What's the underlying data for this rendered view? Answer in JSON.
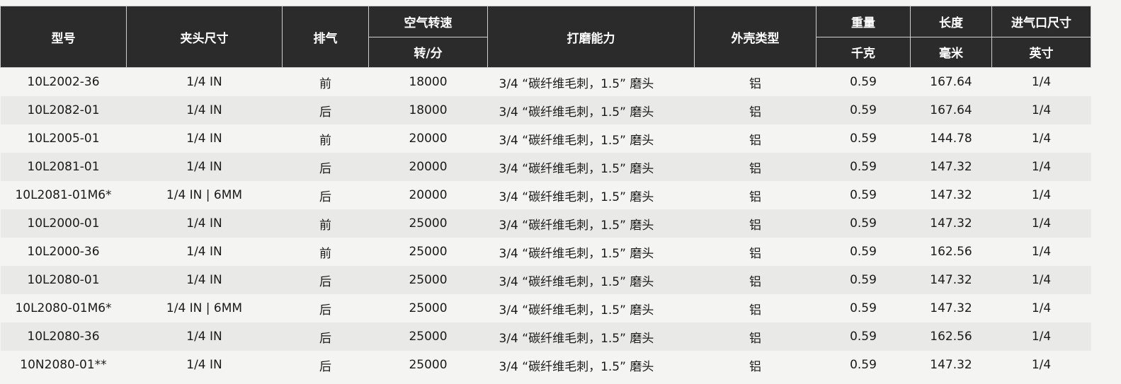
{
  "headers": {
    "model": "型号",
    "chuck_size": "夹头尺寸",
    "exhaust": "排气",
    "air_speed": "空气转速",
    "air_speed_unit": "转/分",
    "grinding": "打磨能力",
    "housing": "外壳类型",
    "weight": "重量",
    "weight_unit": "千克",
    "length": "长度",
    "length_unit": "毫米",
    "inlet": "进气口尺寸",
    "inlet_unit": "英寸"
  },
  "rows": [
    [
      "10L2002-36",
      "1/4 IN",
      "前",
      "18000",
      "3/4 “碳纤维毛刺，1.5” 磨头",
      "铝",
      "0.59",
      "167.64",
      "1/4"
    ],
    [
      "10L2082-01",
      "1/4 IN",
      "后",
      "18000",
      "3/4 “碳纤维毛刺，1.5” 磨头",
      "铝",
      "0.59",
      "167.64",
      "1/4"
    ],
    [
      "10L2005-01",
      "1/4 IN",
      "前",
      "20000",
      "3/4 “碳纤维毛刺，1.5” 磨头",
      "铝",
      "0.59",
      "144.78",
      "1/4"
    ],
    [
      "10L2081-01",
      "1/4 IN",
      "后",
      "20000",
      "3/4 “碳纤维毛刺，1.5” 磨头",
      "铝",
      "0.59",
      "147.32",
      "1/4"
    ],
    [
      "10L2081-01M6*",
      "1/4 IN | 6MM",
      "后",
      "20000",
      "3/4 “碳纤维毛刺，1.5” 磨头",
      "铝",
      "0.59",
      "147.32",
      "1/4"
    ],
    [
      "10L2000-01",
      "1/4 IN",
      "前",
      "25000",
      "3/4 “碳纤维毛刺，1.5” 磨头",
      "铝",
      "0.59",
      "147.32",
      "1/4"
    ],
    [
      "10L2000-36",
      "1/4 IN",
      "前",
      "25000",
      "3/4 “碳纤维毛刺，1.5” 磨头",
      "铝",
      "0.59",
      "162.56",
      "1/4"
    ],
    [
      "10L2080-01",
      "1/4 IN",
      "后",
      "25000",
      "3/4 “碳纤维毛刺，1.5” 磨头",
      "铝",
      "0.59",
      "147.32",
      "1/4"
    ],
    [
      "10L2080-01M6*",
      "1/4 IN | 6MM",
      "后",
      "25000",
      "3/4 “碳纤维毛刺，1.5” 磨头",
      "铝",
      "0.59",
      "147.32",
      "1/4"
    ],
    [
      "10L2080-36",
      "1/4 IN",
      "后",
      "25000",
      "3/4 “碳纤维毛刺，1.5” 磨头",
      "铝",
      "0.59",
      "162.56",
      "1/4"
    ],
    [
      "10N2080-01**",
      "1/4 IN",
      "后",
      "25000",
      "3/4 “碳纤维毛刺，1.5” 磨头",
      "铝",
      "0.59",
      "147.32",
      "1/4"
    ]
  ]
}
